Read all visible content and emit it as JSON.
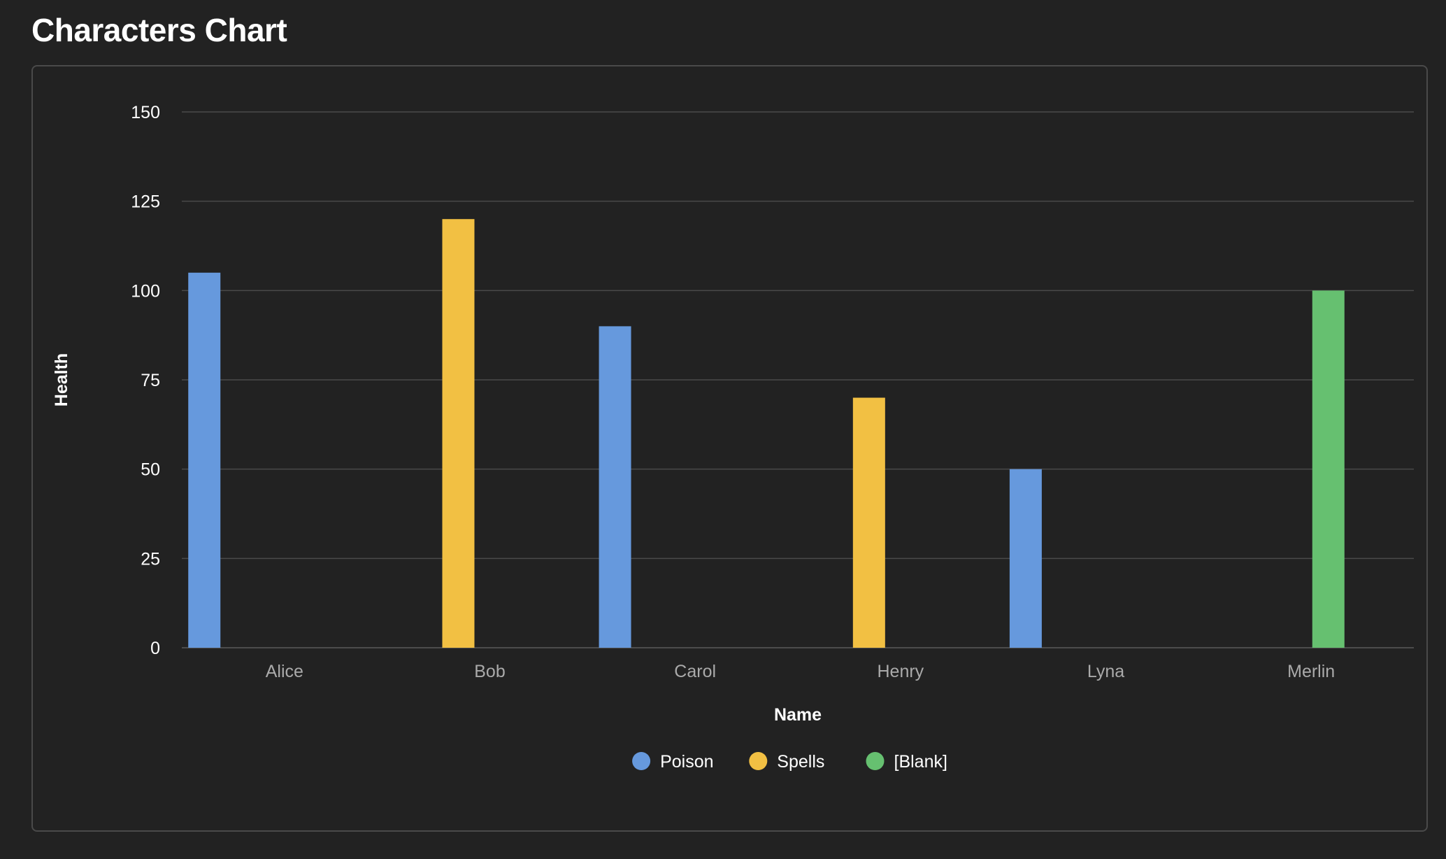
{
  "page": {
    "title": "Characters Chart"
  },
  "chart_data": {
    "type": "bar",
    "title": "Characters Chart",
    "xlabel": "Name",
    "ylabel": "Health",
    "categories": [
      "Alice",
      "Bob",
      "Carol",
      "Henry",
      "Lyna",
      "Merlin"
    ],
    "ylim": [
      0,
      150
    ],
    "yticks": [
      0,
      25,
      50,
      75,
      100,
      125,
      150
    ],
    "grid": true,
    "legend_position": "bottom-center",
    "series": [
      {
        "name": "Poison",
        "color": "#6699dd",
        "values": [
          105,
          null,
          90,
          null,
          50,
          null
        ]
      },
      {
        "name": "Spells",
        "color": "#f2c043",
        "values": [
          null,
          120,
          null,
          70,
          null,
          null
        ]
      },
      {
        "name": "[Blank]",
        "color": "#66c070",
        "values": [
          null,
          null,
          null,
          null,
          null,
          100
        ]
      }
    ]
  },
  "colors": {
    "background": "#222222",
    "gridline": "#4a4a4a",
    "axis_text": "#ffffff",
    "category_text": "#aaaaaa"
  }
}
